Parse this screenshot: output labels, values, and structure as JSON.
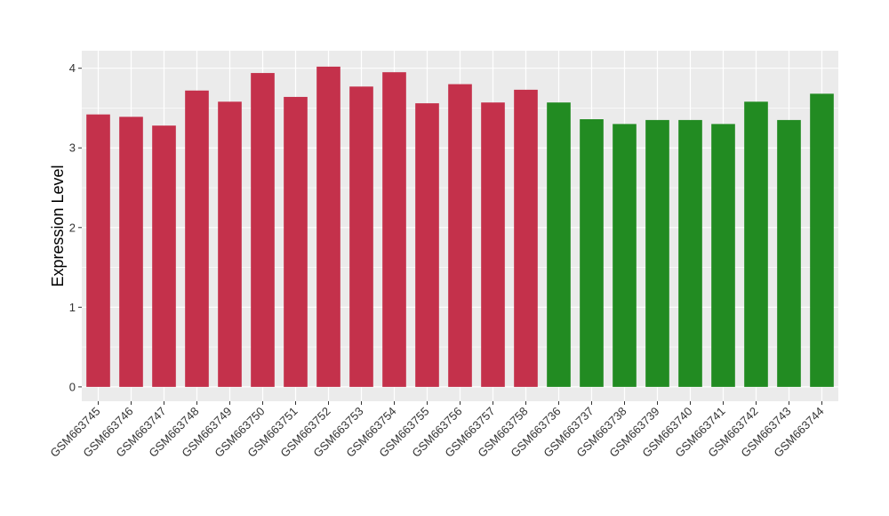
{
  "chart_data": {
    "type": "bar",
    "title": "",
    "xlabel": "",
    "ylabel": "Expression Level",
    "ylim": [
      -0.18,
      4.22
    ],
    "yticks": [
      0,
      1,
      2,
      3,
      4
    ],
    "grid": true,
    "legend": "none",
    "categories": [
      "GSM663745",
      "GSM663746",
      "GSM663747",
      "GSM663748",
      "GSM663749",
      "GSM663750",
      "GSM663751",
      "GSM663752",
      "GSM663753",
      "GSM663754",
      "GSM663755",
      "GSM663756",
      "GSM663757",
      "GSM663758",
      "GSM663736",
      "GSM663737",
      "GSM663738",
      "GSM663739",
      "GSM663740",
      "GSM663741",
      "GSM663742",
      "GSM663743",
      "GSM663744"
    ],
    "values": [
      3.42,
      3.39,
      3.28,
      3.72,
      3.58,
      3.94,
      3.64,
      4.02,
      3.77,
      3.95,
      3.56,
      3.8,
      3.57,
      3.73,
      3.57,
      3.36,
      3.3,
      3.35,
      3.35,
      3.3,
      3.58,
      3.35,
      3.68
    ],
    "group_colors": [
      "#c4314b",
      "#228b22"
    ],
    "group_sizes": [
      14,
      9
    ],
    "panel_background": "#ebebeb",
    "grid_color": "#ffffff"
  }
}
